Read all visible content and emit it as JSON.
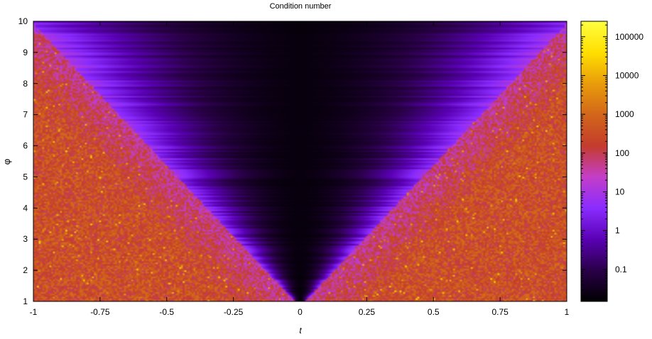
{
  "chart_data": {
    "type": "heatmap",
    "title": "Condition number",
    "xlabel": "t",
    "ylabel": "φ",
    "xlim": [
      -1,
      1
    ],
    "ylim": [
      1,
      10
    ],
    "x_ticks": [
      "-1",
      "-0.75",
      "-0.5",
      "-0.25",
      "0",
      "0.25",
      "0.5",
      "0.75",
      "1"
    ],
    "y_ticks": [
      "1",
      "2",
      "3",
      "4",
      "5",
      "6",
      "7",
      "8",
      "9",
      "10"
    ],
    "colorbar": {
      "scale": "log",
      "range": [
        0.015,
        250000
      ],
      "ticks": [
        "0.1",
        "1",
        "10",
        "100",
        "1000",
        "10000",
        "100000"
      ],
      "colormap": [
        "#000000",
        "#2a0048",
        "#5a00b4",
        "#8a2cff",
        "#c43ec8",
        "#c43c2c",
        "#d2661a",
        "#e99c0a",
        "#ffdf00",
        "#ffff40"
      ]
    },
    "grid": false,
    "description_of_field": {
      "region_low_condition": "dark wedge centered at t=0 widening with φ",
      "region_high_condition": "noisy red/orange band outside |t| > ~0.1*(φ-1)"
    }
  }
}
